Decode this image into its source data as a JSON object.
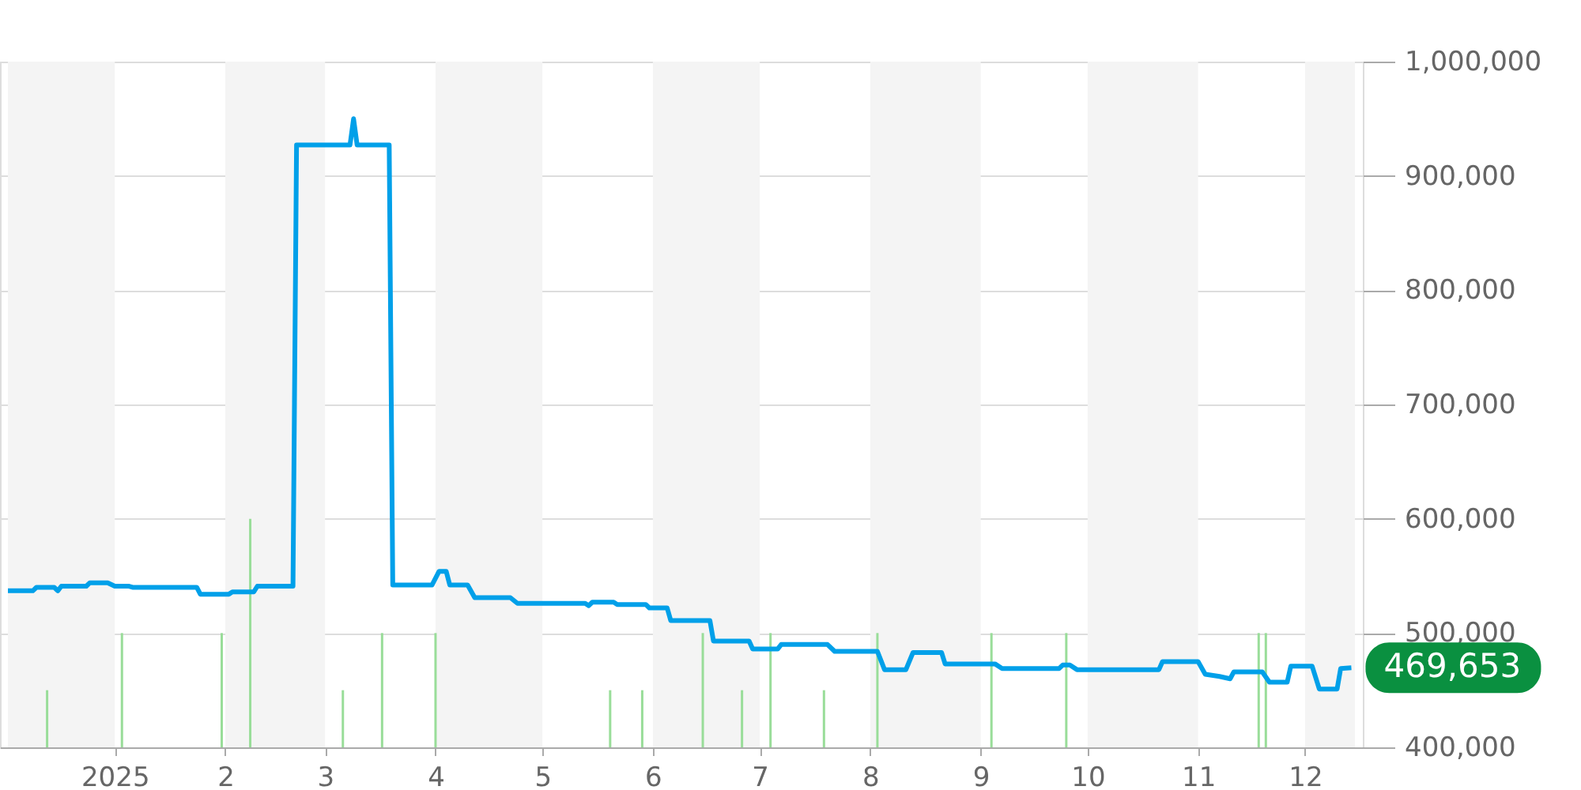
{
  "chart_data": {
    "type": "line",
    "xlim": [
      "2024-12-02",
      "2025-12-15"
    ],
    "ylim": [
      400000,
      1000000
    ],
    "yticks": [
      {
        "value": 400000,
        "label": "400,000"
      },
      {
        "value": 500000,
        "label": "500,000"
      },
      {
        "value": 600000,
        "label": "600,000"
      },
      {
        "value": 700000,
        "label": "700,000"
      },
      {
        "value": 800000,
        "label": "800,000"
      },
      {
        "value": 900000,
        "label": "900,000"
      },
      {
        "value": 1000000,
        "label": "1,000,000"
      }
    ],
    "xticks": [
      {
        "value": "2025-01-01",
        "label": "2025"
      },
      {
        "value": "2025-02-01",
        "label": "2"
      },
      {
        "value": "2025-03-01",
        "label": "3"
      },
      {
        "value": "2025-04-01",
        "label": "4"
      },
      {
        "value": "2025-05-01",
        "label": "5"
      },
      {
        "value": "2025-06-01",
        "label": "6"
      },
      {
        "value": "2025-07-01",
        "label": "7"
      },
      {
        "value": "2025-08-01",
        "label": "8"
      },
      {
        "value": "2025-09-01",
        "label": "9"
      },
      {
        "value": "2025-10-01",
        "label": "10"
      },
      {
        "value": "2025-11-01",
        "label": "11"
      },
      {
        "value": "2025-12-01",
        "label": "12"
      }
    ],
    "grid": "y",
    "marker": "none",
    "line_style": "solid",
    "bands": [
      {
        "axis": "x",
        "from": "2024-12-02",
        "to": "2025-01-01",
        "color": "#f4f4f4"
      },
      {
        "axis": "x",
        "from": "2025-02-01",
        "to": "2025-03-01",
        "color": "#f4f4f4"
      },
      {
        "axis": "x",
        "from": "2025-04-01",
        "to": "2025-05-01",
        "color": "#f4f4f4"
      },
      {
        "axis": "x",
        "from": "2025-06-01",
        "to": "2025-07-01",
        "color": "#f4f4f4"
      },
      {
        "axis": "x",
        "from": "2025-08-01",
        "to": "2025-09-01",
        "color": "#f4f4f4"
      },
      {
        "axis": "x",
        "from": "2025-10-01",
        "to": "2025-11-01",
        "color": "#f4f4f4"
      },
      {
        "axis": "x",
        "from": "2025-12-01",
        "to": "2025-12-15",
        "color": "#f4f4f4"
      }
    ],
    "annotations": [
      {
        "text": "469,653",
        "x": "2025-12-14",
        "y": 469653
      }
    ],
    "series": [
      {
        "type": "bar",
        "color": "#99dd99",
        "x": [
          "2024-12-13",
          "2025-01-03",
          "2025-01-31",
          "2025-02-08",
          "2025-03-06",
          "2025-03-17",
          "2025-04-01",
          "2025-05-20",
          "2025-05-29",
          "2025-06-15",
          "2025-06-26",
          "2025-07-04",
          "2025-07-19",
          "2025-08-03",
          "2025-09-04",
          "2025-09-25",
          "2025-11-18",
          "2025-11-20"
        ],
        "values": [
          450000,
          500000,
          500000,
          600000,
          450000,
          500000,
          500000,
          450000,
          450000,
          500000,
          450000,
          500000,
          450000,
          500000,
          500000,
          500000,
          500000,
          500000
        ]
      },
      {
        "color": "#00a0e9",
        "x": [
          "2024-12-02",
          "2024-12-09",
          "2024-12-10",
          "2024-12-15",
          "2024-12-16",
          "2024-12-17",
          "2024-12-24",
          "2024-12-25",
          "2024-12-30",
          "2025-01-01",
          "2025-01-05",
          "2025-01-06",
          "2025-01-24",
          "2025-01-25",
          "2025-02-02",
          "2025-02-03",
          "2025-02-09",
          "2025-02-10",
          "2025-02-20",
          "2025-02-21",
          "2025-03-08",
          "2025-03-09",
          "2025-03-10",
          "2025-03-19",
          "2025-03-20",
          "2025-03-31",
          "2025-04-02",
          "2025-04-04",
          "2025-04-05",
          "2025-04-10",
          "2025-04-12",
          "2025-04-22",
          "2025-04-24",
          "2025-05-13",
          "2025-05-14",
          "2025-05-15",
          "2025-05-21",
          "2025-05-22",
          "2025-05-30",
          "2025-05-31",
          "2025-06-05",
          "2025-06-06",
          "2025-06-17",
          "2025-06-18",
          "2025-06-28",
          "2025-06-29",
          "2025-07-06",
          "2025-07-07",
          "2025-07-20",
          "2025-07-22",
          "2025-08-03",
          "2025-08-05",
          "2025-08-11",
          "2025-08-13",
          "2025-08-21",
          "2025-08-22",
          "2025-09-05",
          "2025-09-07",
          "2025-09-23",
          "2025-09-24",
          "2025-09-26",
          "2025-09-28",
          "2025-10-21",
          "2025-10-22",
          "2025-11-01",
          "2025-11-03",
          "2025-11-07",
          "2025-11-10",
          "2025-11-11",
          "2025-11-19",
          "2025-11-21",
          "2025-11-26",
          "2025-11-27",
          "2025-12-03",
          "2025-12-05",
          "2025-12-10",
          "2025-12-11",
          "2025-12-14"
        ],
        "values": [
          537000,
          537000,
          540000,
          540000,
          537000,
          541000,
          541000,
          544000,
          544000,
          541000,
          541000,
          540000,
          540000,
          534000,
          534000,
          536000,
          536000,
          541000,
          541000,
          927000,
          927000,
          950000,
          927000,
          927000,
          542000,
          542000,
          554000,
          554000,
          542000,
          542000,
          531000,
          531000,
          526000,
          526000,
          524000,
          527000,
          527000,
          525000,
          525000,
          522000,
          522000,
          511000,
          511000,
          493000,
          493000,
          486000,
          486000,
          490000,
          490000,
          484000,
          484000,
          468000,
          468000,
          483000,
          483000,
          473000,
          473000,
          469000,
          469000,
          472000,
          472000,
          468000,
          468000,
          475000,
          475000,
          464000,
          462000,
          460000,
          466000,
          466000,
          457000,
          457000,
          471000,
          471000,
          451000,
          451000,
          469000,
          469653
        ]
      }
    ]
  }
}
